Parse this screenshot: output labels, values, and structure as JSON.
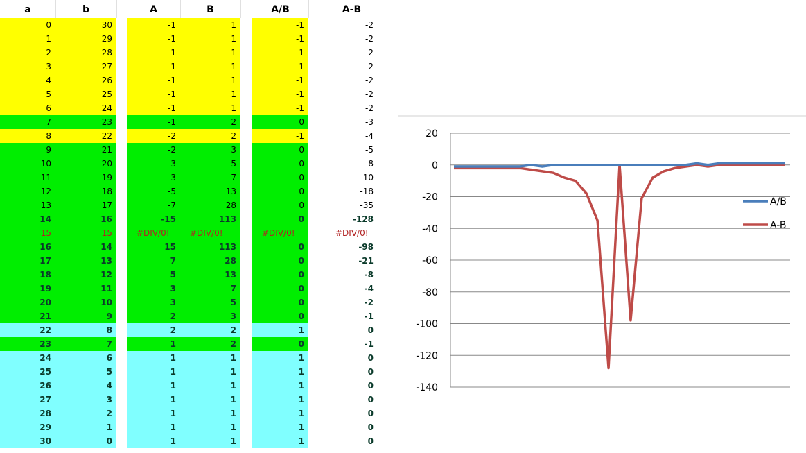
{
  "headers": [
    "a",
    "b",
    "A",
    "B",
    "A/B",
    "A-B"
  ],
  "colors": {
    "yellow": "#ffff00",
    "green": "#00ee00",
    "cyan": "#80ffff",
    "ab_line": "#4a7ebb",
    "amb_line": "#be4b48",
    "error_text": "#b22222"
  },
  "rows": [
    {
      "a": "0",
      "b": "30",
      "A": "-1",
      "B": "1",
      "AB": "-1",
      "AmB": "-2",
      "fill": "yellow"
    },
    {
      "a": "1",
      "b": "29",
      "A": "-1",
      "B": "1",
      "AB": "-1",
      "AmB": "-2",
      "fill": "yellow"
    },
    {
      "a": "2",
      "b": "28",
      "A": "-1",
      "B": "1",
      "AB": "-1",
      "AmB": "-2",
      "fill": "yellow"
    },
    {
      "a": "3",
      "b": "27",
      "A": "-1",
      "B": "1",
      "AB": "-1",
      "AmB": "-2",
      "fill": "yellow"
    },
    {
      "a": "4",
      "b": "26",
      "A": "-1",
      "B": "1",
      "AB": "-1",
      "AmB": "-2",
      "fill": "yellow"
    },
    {
      "a": "5",
      "b": "25",
      "A": "-1",
      "B": "1",
      "AB": "-1",
      "AmB": "-2",
      "fill": "yellow"
    },
    {
      "a": "6",
      "b": "24",
      "A": "-1",
      "B": "1",
      "AB": "-1",
      "AmB": "-2",
      "fill": "yellow"
    },
    {
      "a": "7",
      "b": "23",
      "A": "-1",
      "B": "2",
      "AB": "0",
      "AmB": "-3",
      "fill": "green"
    },
    {
      "a": "8",
      "b": "22",
      "A": "-2",
      "B": "2",
      "AB": "-1",
      "AmB": "-4",
      "fill": "yellow"
    },
    {
      "a": "9",
      "b": "21",
      "A": "-2",
      "B": "3",
      "AB": "0",
      "AmB": "-5",
      "fill": "green"
    },
    {
      "a": "10",
      "b": "20",
      "A": "-3",
      "B": "5",
      "AB": "0",
      "AmB": "-8",
      "fill": "green"
    },
    {
      "a": "11",
      "b": "19",
      "A": "-3",
      "B": "7",
      "AB": "0",
      "AmB": "-10",
      "fill": "green"
    },
    {
      "a": "12",
      "b": "18",
      "A": "-5",
      "B": "13",
      "AB": "0",
      "AmB": "-18",
      "fill": "green"
    },
    {
      "a": "13",
      "b": "17",
      "A": "-7",
      "B": "28",
      "AB": "0",
      "AmB": "-35",
      "fill": "green"
    },
    {
      "a": "14",
      "b": "16",
      "A": "-15",
      "B": "113",
      "AB": "0",
      "AmB": "-128",
      "fill": "green"
    },
    {
      "a": "15",
      "b": "15",
      "A": "#DIV/0!",
      "B": "#DIV/0!",
      "AB": "#DIV/0!",
      "AmB": "#DIV/0!",
      "fill": "green"
    },
    {
      "a": "16",
      "b": "14",
      "A": "15",
      "B": "113",
      "AB": "0",
      "AmB": "-98",
      "fill": "green"
    },
    {
      "a": "17",
      "b": "13",
      "A": "7",
      "B": "28",
      "AB": "0",
      "AmB": "-21",
      "fill": "green"
    },
    {
      "a": "18",
      "b": "12",
      "A": "5",
      "B": "13",
      "AB": "0",
      "AmB": "-8",
      "fill": "green"
    },
    {
      "a": "19",
      "b": "11",
      "A": "3",
      "B": "7",
      "AB": "0",
      "AmB": "-4",
      "fill": "green"
    },
    {
      "a": "20",
      "b": "10",
      "A": "3",
      "B": "5",
      "AB": "0",
      "AmB": "-2",
      "fill": "green"
    },
    {
      "a": "21",
      "b": "9",
      "A": "2",
      "B": "3",
      "AB": "0",
      "AmB": "-1",
      "fill": "green"
    },
    {
      "a": "22",
      "b": "8",
      "A": "2",
      "B": "2",
      "AB": "1",
      "AmB": "0",
      "fill": "cyan"
    },
    {
      "a": "23",
      "b": "7",
      "A": "1",
      "B": "2",
      "AB": "0",
      "AmB": "-1",
      "fill": "green"
    },
    {
      "a": "24",
      "b": "6",
      "A": "1",
      "B": "1",
      "AB": "1",
      "AmB": "0",
      "fill": "cyan"
    },
    {
      "a": "25",
      "b": "5",
      "A": "1",
      "B": "1",
      "AB": "1",
      "AmB": "0",
      "fill": "cyan"
    },
    {
      "a": "26",
      "b": "4",
      "A": "1",
      "B": "1",
      "AB": "1",
      "AmB": "0",
      "fill": "cyan"
    },
    {
      "a": "27",
      "b": "3",
      "A": "1",
      "B": "1",
      "AB": "1",
      "AmB": "0",
      "fill": "cyan"
    },
    {
      "a": "28",
      "b": "2",
      "A": "1",
      "B": "1",
      "AB": "1",
      "AmB": "0",
      "fill": "cyan"
    },
    {
      "a": "29",
      "b": "1",
      "A": "1",
      "B": "1",
      "AB": "1",
      "AmB": "0",
      "fill": "cyan"
    },
    {
      "a": "30",
      "b": "0",
      "A": "1",
      "B": "1",
      "AB": "1",
      "AmB": "0",
      "fill": "cyan"
    }
  ],
  "chart_data": {
    "type": "line",
    "title": "",
    "x": [
      0,
      1,
      2,
      3,
      4,
      5,
      6,
      7,
      8,
      9,
      10,
      11,
      12,
      13,
      14,
      15,
      16,
      17,
      18,
      19,
      20,
      21,
      22,
      23,
      24,
      25,
      26,
      27,
      28,
      29,
      30
    ],
    "series": [
      {
        "name": "A/B",
        "values": [
          -1,
          -1,
          -1,
          -1,
          -1,
          -1,
          -1,
          0,
          -1,
          0,
          0,
          0,
          0,
          0,
          0,
          0,
          0,
          0,
          0,
          0,
          0,
          0,
          1,
          0,
          1,
          1,
          1,
          1,
          1,
          1,
          1
        ]
      },
      {
        "name": "A-B",
        "values": [
          -2,
          -2,
          -2,
          -2,
          -2,
          -2,
          -2,
          -3,
          -4,
          -5,
          -8,
          -10,
          -18,
          -35,
          -128,
          0,
          -98,
          -21,
          -8,
          -4,
          -2,
          -1,
          0,
          -1,
          0,
          0,
          0,
          0,
          0,
          0,
          0
        ]
      }
    ],
    "yticks": [
      "20",
      "0",
      "-20",
      "-40",
      "-60",
      "-80",
      "-100",
      "-120",
      "-140"
    ],
    "ylim": [
      -140,
      20
    ],
    "grid": true,
    "legend": "right"
  }
}
